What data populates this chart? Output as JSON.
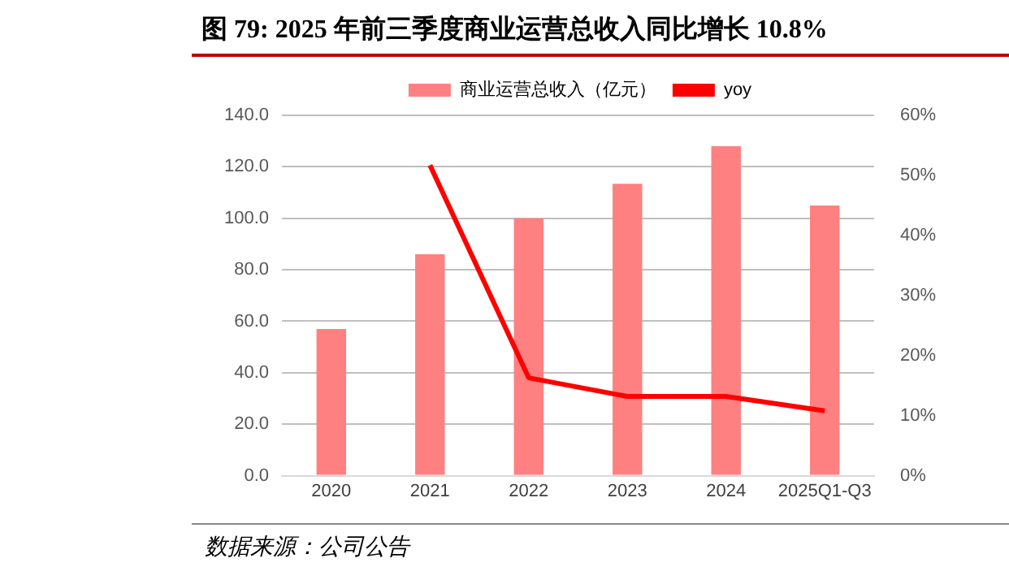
{
  "chart_data": {
    "type": "bar",
    "title": "图 79: 2025 年前三季度商业运营总收入同比增长 10.8%",
    "categories": [
      "2020",
      "2021",
      "2022",
      "2023",
      "2024",
      "2025Q1-Q3"
    ],
    "series": [
      {
        "name": "商业运营总收入（亿元）",
        "color": "#ff8080",
        "values": [
          57,
          86,
          100,
          113.4,
          128,
          105
        ]
      },
      {
        "name": "yoy",
        "type": "line",
        "axis": "y2",
        "color": "#ff0000",
        "values": [
          null,
          51.7,
          16.3,
          13.2,
          13.2,
          10.8
        ]
      }
    ],
    "ylim": [
      0,
      140
    ],
    "yticks": [
      {
        "value": 0,
        "label": "0.0"
      },
      {
        "value": 20,
        "label": "20.0"
      },
      {
        "value": 40,
        "label": "40.0"
      },
      {
        "value": 60,
        "label": "60.0"
      },
      {
        "value": 80,
        "label": "80.0"
      },
      {
        "value": 100,
        "label": "100.0"
      },
      {
        "value": 120,
        "label": "120.0"
      },
      {
        "value": 140,
        "label": "140.0"
      }
    ],
    "y2lim": [
      0,
      60
    ],
    "y2ticks": [
      {
        "value": 0,
        "label": "0%"
      },
      {
        "value": 10,
        "label": "10%"
      },
      {
        "value": 20,
        "label": "20%"
      },
      {
        "value": 30,
        "label": "30%"
      },
      {
        "value": 40,
        "label": "40%"
      },
      {
        "value": 50,
        "label": "50%"
      },
      {
        "value": 60,
        "label": "60%"
      }
    ],
    "grid": "y",
    "legend": "top",
    "marker": "none",
    "line_style": "solid",
    "annotations": [
      "数据来源：公司公告"
    ]
  }
}
